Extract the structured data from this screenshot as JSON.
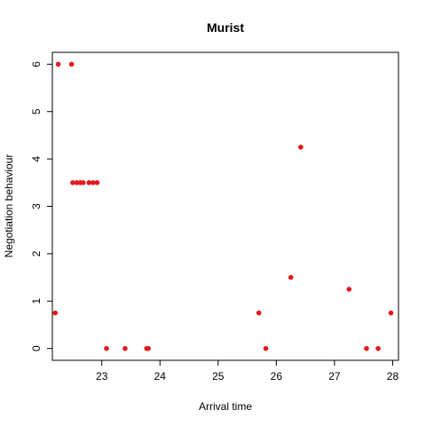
{
  "chart_data": {
    "type": "scatter",
    "title": "Murist",
    "xlabel": "Arrival time",
    "ylabel": "Negotiation behaviour",
    "xlim": [
      22.15,
      28.1
    ],
    "ylim": [
      -0.25,
      6.25
    ],
    "x_ticks": [
      23,
      24,
      25,
      26,
      27,
      28
    ],
    "y_ticks": [
      0,
      1,
      2,
      3,
      4,
      5,
      6
    ],
    "point_color": "#e31a1c",
    "grid": false,
    "legend": "none",
    "points": [
      {
        "x": 22.2,
        "y": 0.75
      },
      {
        "x": 22.25,
        "y": 6
      },
      {
        "x": 22.48,
        "y": 6
      },
      {
        "x": 22.5,
        "y": 3.5
      },
      {
        "x": 22.57,
        "y": 3.5
      },
      {
        "x": 22.63,
        "y": 3.5
      },
      {
        "x": 22.68,
        "y": 3.5
      },
      {
        "x": 22.78,
        "y": 3.5
      },
      {
        "x": 22.85,
        "y": 3.5
      },
      {
        "x": 22.92,
        "y": 3.5
      },
      {
        "x": 23.08,
        "y": 0
      },
      {
        "x": 23.4,
        "y": 0
      },
      {
        "x": 23.77,
        "y": 0
      },
      {
        "x": 23.8,
        "y": 0
      },
      {
        "x": 25.7,
        "y": 0.75
      },
      {
        "x": 25.82,
        "y": 0
      },
      {
        "x": 26.25,
        "y": 1.5
      },
      {
        "x": 26.42,
        "y": 4.25
      },
      {
        "x": 27.25,
        "y": 1.25
      },
      {
        "x": 27.55,
        "y": 0
      },
      {
        "x": 27.75,
        "y": 0
      },
      {
        "x": 27.97,
        "y": 0.75
      }
    ]
  }
}
